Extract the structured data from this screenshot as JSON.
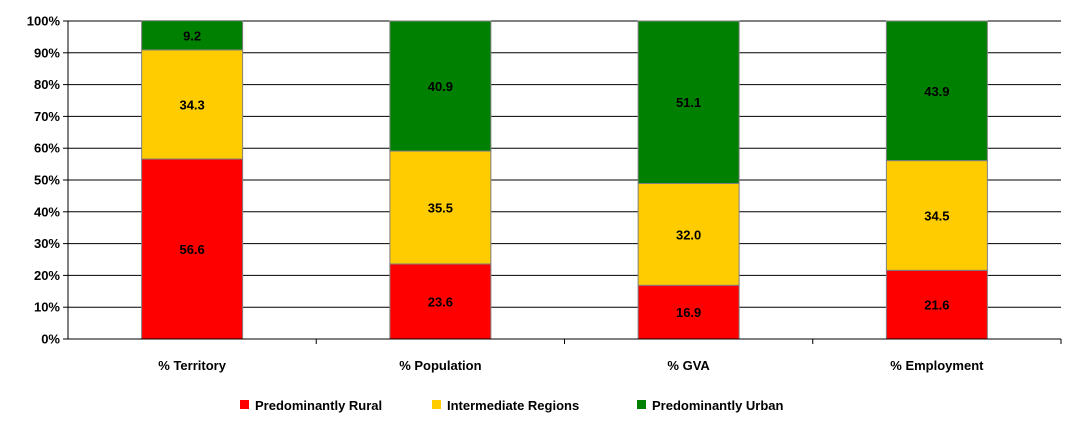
{
  "chart_data": {
    "type": "bar",
    "stacked": "percent",
    "categories": [
      "% Territory",
      "% Population",
      "% GVA",
      "% Employment"
    ],
    "series": [
      {
        "name": "Predominantly Rural",
        "color": "#ff0000",
        "values": [
          56.6,
          23.6,
          16.9,
          21.6
        ],
        "labels": [
          "56.6",
          "23.6",
          "16.9",
          "21.6"
        ]
      },
      {
        "name": "Intermediate Regions",
        "color": "#ffcc00",
        "values": [
          34.3,
          35.5,
          32.0,
          34.5
        ],
        "labels": [
          "34.3",
          "35.5",
          "32.0",
          "34.5"
        ]
      },
      {
        "name": "Predominantly Urban",
        "color": "#008000",
        "values": [
          9.2,
          40.9,
          51.1,
          43.9
        ],
        "labels": [
          "9.2",
          "40.9",
          "51.1",
          "43.9"
        ]
      }
    ],
    "y_ticks": [
      "0%",
      "10%",
      "20%",
      "30%",
      "40%",
      "50%",
      "60%",
      "70%",
      "80%",
      "90%",
      "100%"
    ],
    "ylim": [
      0,
      100
    ],
    "grid": true,
    "legend_position": "bottom"
  }
}
